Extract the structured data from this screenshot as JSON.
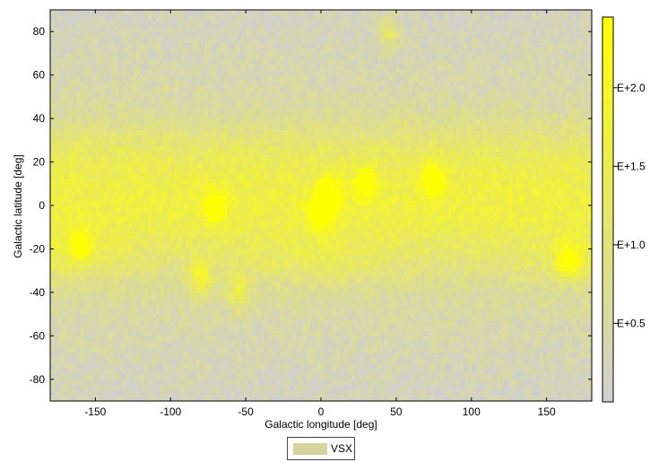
{
  "chart_data": {
    "type": "heatmap",
    "title": "",
    "xlabel": "Galactic longitude [deg]",
    "ylabel": "Galactic latitude [deg]",
    "xlim": [
      -180,
      180
    ],
    "ylim": [
      -90,
      90
    ],
    "xticks": [
      "-150",
      "-100",
      "-50",
      "0",
      "50",
      "100",
      "150"
    ],
    "xtick_values": [
      -150,
      -100,
      -50,
      0,
      50,
      100,
      150
    ],
    "yticks": [
      "80",
      "60",
      "40",
      "20",
      "0",
      "-20",
      "-40",
      "-60",
      "-80"
    ],
    "ytick_values": [
      80,
      60,
      40,
      20,
      0,
      -20,
      -40,
      -60,
      -80
    ],
    "colorbar": {
      "labels": [
        "E+2.0",
        "E+1.5",
        "E+1.0",
        "E+0.5"
      ],
      "label_values": [
        2.0,
        1.5,
        1.0,
        0.5
      ],
      "range": [
        0,
        2.45
      ],
      "color_low": "#cfcfcf",
      "color_high": "#ffff00"
    },
    "hotspots": [
      {
        "l": 0,
        "b": -3,
        "level": 2.4
      },
      {
        "l": 5,
        "b": 5,
        "level": 2.2
      },
      {
        "l": 75,
        "b": 12,
        "level": 1.9
      },
      {
        "l": -160,
        "b": -18,
        "level": 1.8
      },
      {
        "l": 165,
        "b": -25,
        "level": 1.9
      },
      {
        "l": -80,
        "b": -33,
        "level": 1.6
      },
      {
        "l": -70,
        "b": 0,
        "level": 1.6
      },
      {
        "l": -55,
        "b": -40,
        "level": 1.3
      },
      {
        "l": 45,
        "b": 80,
        "level": 1.3
      },
      {
        "l": 30,
        "b": 10,
        "level": 1.6
      }
    ],
    "legend": {
      "label": "VSX",
      "color": "#d6d49e",
      "placement": "bottom-center"
    }
  }
}
